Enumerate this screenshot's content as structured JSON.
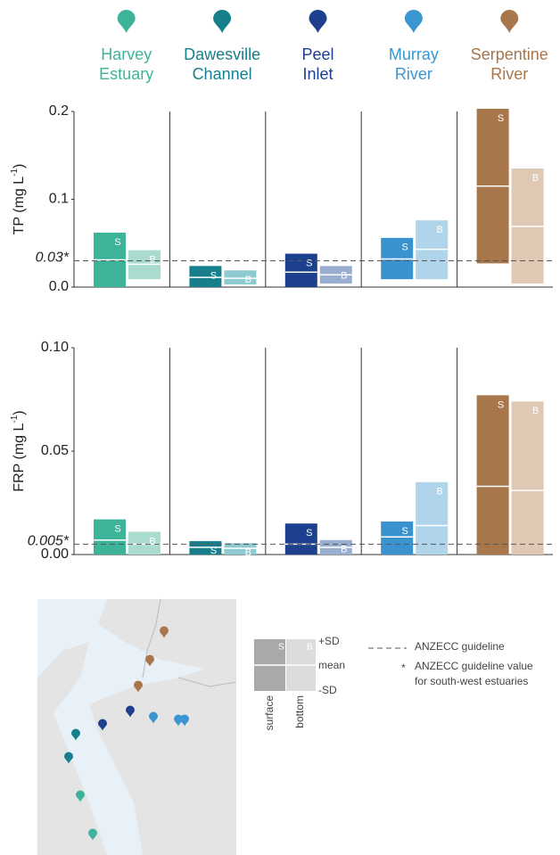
{
  "sites": [
    {
      "name_lines": [
        "Harvey",
        "Estuary"
      ],
      "color": "#3db39a"
    },
    {
      "name_lines": [
        "Dawesville",
        "Channel"
      ],
      "color": "#167f8c"
    },
    {
      "name_lines": [
        "Peel",
        "Inlet"
      ],
      "color": "#1d3f8e"
    },
    {
      "name_lines": [
        "Murray",
        "River"
      ],
      "color": "#3a95d0"
    },
    {
      "name_lines": [
        "Serpentine",
        "River"
      ],
      "color": "#a7764a"
    }
  ],
  "chart_data": [
    {
      "type": "floating-bar",
      "ylabel": "TP (mg L",
      "ylabel_sup": "-1",
      "ylabel_end": ")",
      "ylim": [
        0,
        0.2
      ],
      "yticks": [
        {
          "value": 0,
          "label": "0.0"
        },
        0.1,
        0.2
      ],
      "guideline": {
        "value": 0.03,
        "label": "0.03*"
      },
      "series": [
        {
          "name": "S",
          "colors": [
            "#3db39a",
            "#177f8c",
            "#1c3f8e",
            "#3a93cf",
            "#a7764a"
          ],
          "low": [
            0,
            0,
            0,
            0.009,
            0.027
          ],
          "mean": [
            0.031,
            0.011,
            0.017,
            0.032,
            0.115
          ],
          "high": [
            0.062,
            0.024,
            0.038,
            0.056,
            0.203
          ]
        },
        {
          "name": "B",
          "colors": [
            "#a9dccf",
            "#8ecbd0",
            "#9aaed2",
            "#b0d5ea",
            "#dfc9b5"
          ],
          "low": [
            0.009,
            0.003,
            0.004,
            0.009,
            0.004
          ],
          "mean": [
            0.026,
            0.01,
            0.014,
            0.043,
            0.069
          ],
          "high": [
            0.042,
            0.019,
            0.024,
            0.076,
            0.135
          ]
        }
      ]
    },
    {
      "type": "floating-bar",
      "ylabel": "FRP (mg L",
      "ylabel_sup": "-1",
      "ylabel_end": ")",
      "ylim": [
        0,
        0.1
      ],
      "yticks": [
        {
          "value": 0,
          "label": "0.00"
        },
        {
          "value": 0.05,
          "label": "0.05"
        },
        {
          "value": 0.1,
          "label": "0.10"
        }
      ],
      "guideline": {
        "value": 0.005,
        "label": "0.005*"
      },
      "series": [
        {
          "name": "S",
          "colors": [
            "#3db39a",
            "#177f8c",
            "#1c3f8e",
            "#3a93cf",
            "#a7764a"
          ],
          "low": [
            0,
            0,
            0,
            0,
            0
          ],
          "mean": [
            0.007,
            0.0035,
            0.005,
            0.0085,
            0.033
          ],
          "high": [
            0.017,
            0.0065,
            0.015,
            0.016,
            0.077
          ]
        },
        {
          "name": "B",
          "colors": [
            "#a9dccf",
            "#8ecbd0",
            "#9aaed2",
            "#b0d5ea",
            "#dfc9b5"
          ],
          "low": [
            0,
            0,
            0,
            0,
            0
          ],
          "mean": [
            0.005,
            0.003,
            0.0035,
            0.014,
            0.031
          ],
          "high": [
            0.011,
            0.0055,
            0.007,
            0.035,
            0.074
          ]
        }
      ]
    }
  ],
  "legend": {
    "surface": "surface",
    "bottom": "bottom",
    "plus_sd": "+SD",
    "mean": "mean",
    "minus_sd": "-SD",
    "guideline": "ANZECC guideline",
    "star": "*",
    "star_line1": "ANZECC guideline value",
    "star_line2": "for south-west estuaries"
  }
}
